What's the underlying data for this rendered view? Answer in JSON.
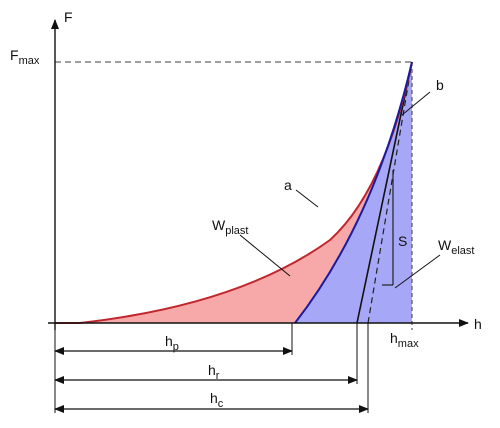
{
  "axes": {
    "y_label": "F",
    "x_label": "h"
  },
  "labels": {
    "fmax_main": "F",
    "fmax_sub": "max",
    "hmax_main": "h",
    "hmax_sub": "max",
    "curve_a": "a",
    "curve_b": "b",
    "stiffness": "S",
    "wplast_main": "W",
    "wplast_sub": "plast",
    "welast_main": "W",
    "welast_sub": "elast",
    "hp_main": "h",
    "hp_sub": "p",
    "hr_main": "h",
    "hr_sub": "r",
    "hc_main": "h",
    "hc_sub": "c"
  },
  "colors": {
    "plastic_area": "#f7a8a8",
    "elastic_area": "#a7a7f7",
    "loading_curve": "#c0272d",
    "unloading_curve": "#1a1a9e",
    "axis": "#111111",
    "guide": "#666666"
  }
}
